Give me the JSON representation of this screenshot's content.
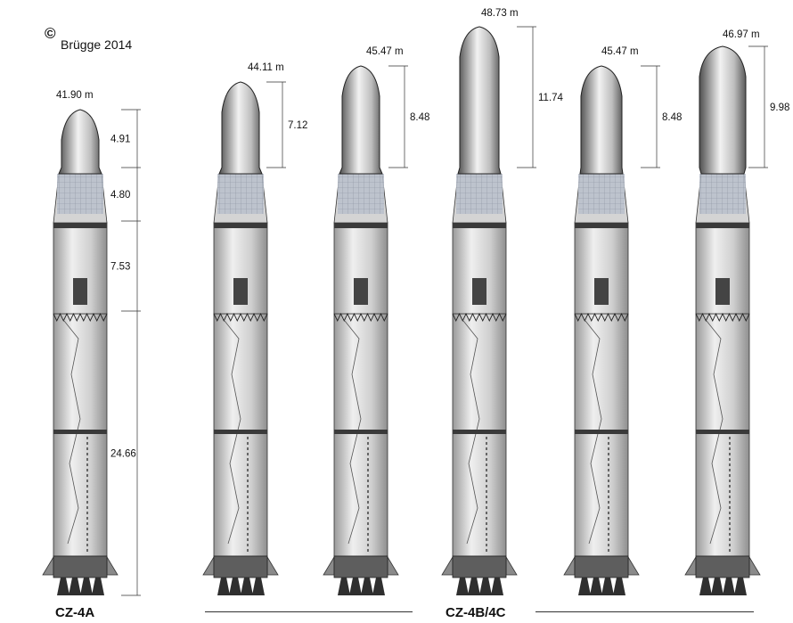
{
  "header": {
    "copyright_symbol": "©",
    "author": "Brügge 2014"
  },
  "rockets": [
    {
      "height_label": "41.90 m",
      "dims": [
        "4.91",
        "4.80",
        "7.53",
        "24.66"
      ]
    },
    {
      "height_label": "44.11 m",
      "dims": [
        "7.12"
      ]
    },
    {
      "height_label": "45.47 m",
      "dims": [
        "8.48"
      ]
    },
    {
      "height_label": "48.73 m",
      "dims": [
        "11.74"
      ]
    },
    {
      "height_label": "45.47 m",
      "dims": [
        "8.48"
      ]
    },
    {
      "height_label": "46.97 m",
      "dims": [
        "9.98"
      ]
    }
  ],
  "captions": {
    "group_a": "CZ-4A",
    "group_b": "CZ-4B/4C"
  },
  "colors": {
    "body": "#c9c9c9",
    "dark": "#4a4a4a",
    "fairing_light": "#e8e8e8",
    "grid": "#9aa4b2"
  }
}
